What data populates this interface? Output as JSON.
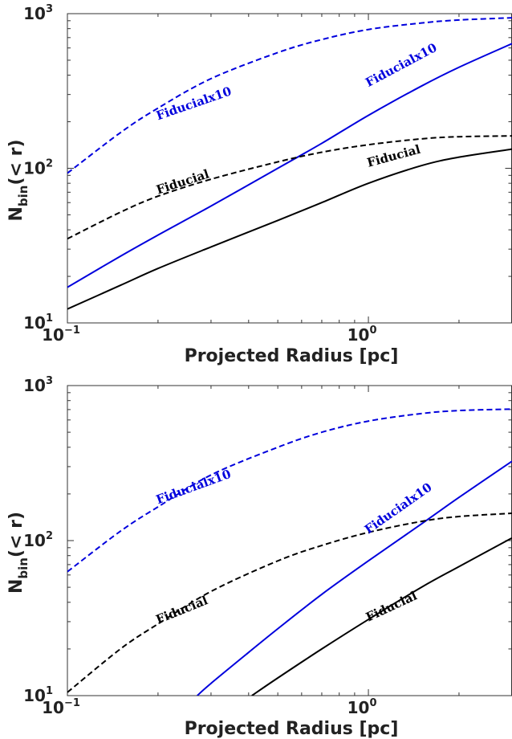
{
  "chart_data": [
    {
      "type": "line",
      "xlabel": "Projected Radius [pc]",
      "ylabel_main": "N",
      "ylabel_sub": "bin",
      "ylabel_tail": "(< r)",
      "xscale": "log",
      "yscale": "log",
      "xlim": [
        0.1,
        3.0
      ],
      "ylim": [
        10,
        1000
      ],
      "x_ticks": [
        {
          "value": 0.1,
          "base": "10",
          "exp": "−1"
        },
        {
          "value": 1,
          "base": "10",
          "exp": "0"
        }
      ],
      "y_ticks": [
        {
          "value": 10,
          "base": "10",
          "exp": "1"
        },
        {
          "value": 100,
          "base": "10",
          "exp": "2"
        },
        {
          "value": 1000,
          "base": "10",
          "exp": "3"
        }
      ],
      "series": [
        {
          "label": "Fiducialx10",
          "color": "#0000dd",
          "style": "dashed",
          "x": [
            0.1,
            0.15,
            0.2,
            0.3,
            0.5,
            0.7,
            1.0,
            1.5,
            2.0,
            3.0
          ],
          "y": [
            93,
            170,
            245,
            380,
            560,
            680,
            790,
            870,
            910,
            940
          ],
          "label_at": {
            "x": 0.2,
            "y": 205,
            "angle": -19
          }
        },
        {
          "label": "Fiducialx10",
          "color": "#0000dd",
          "style": "solid",
          "x": [
            0.1,
            0.15,
            0.2,
            0.3,
            0.5,
            0.7,
            1.0,
            1.5,
            2.0,
            3.0
          ],
          "y": [
            17,
            27,
            37,
            57,
            100,
            145,
            220,
            340,
            450,
            640
          ],
          "label_at": {
            "x": 1.0,
            "y": 335,
            "angle": -28
          }
        },
        {
          "label": "Fiducial",
          "color": "#000000",
          "style": "dashed",
          "x": [
            0.1,
            0.15,
            0.2,
            0.3,
            0.5,
            0.7,
            1.0,
            1.5,
            2.0,
            3.0
          ],
          "y": [
            35,
            52,
            66,
            85,
            110,
            127,
            142,
            155,
            160,
            162
          ],
          "label_at": {
            "x": 0.2,
            "y": 68,
            "angle": -18
          }
        },
        {
          "label": "Fiducial",
          "color": "#000000",
          "style": "solid",
          "x": [
            0.1,
            0.15,
            0.2,
            0.3,
            0.5,
            0.7,
            1.0,
            1.5,
            2.0,
            3.0
          ],
          "y": [
            12.3,
            17.5,
            22.5,
            31,
            46,
            60,
            80,
            104,
            118,
            133
          ],
          "label_at": {
            "x": 1.0,
            "y": 102,
            "angle": -15
          }
        }
      ]
    },
    {
      "type": "line",
      "xlabel": "Projected Radius [pc]",
      "ylabel_main": "N",
      "ylabel_sub": "bin",
      "ylabel_tail": "(< r)",
      "xscale": "log",
      "yscale": "log",
      "xlim": [
        0.1,
        3.0
      ],
      "ylim": [
        10,
        1000
      ],
      "x_ticks": [
        {
          "value": 0.1,
          "base": "10",
          "exp": "−1"
        },
        {
          "value": 1,
          "base": "10",
          "exp": "0"
        }
      ],
      "y_ticks": [
        {
          "value": 10,
          "base": "10",
          "exp": "1"
        },
        {
          "value": 100,
          "base": "10",
          "exp": "2"
        },
        {
          "value": 1000,
          "base": "10",
          "exp": "3"
        }
      ],
      "series": [
        {
          "label": "Fiducialx10",
          "color": "#0000dd",
          "style": "dashed",
          "x": [
            0.1,
            0.15,
            0.2,
            0.3,
            0.5,
            0.7,
            1.0,
            1.5,
            2.0,
            3.0
          ],
          "y": [
            63,
            115,
            165,
            265,
            400,
            500,
            590,
            660,
            690,
            705
          ],
          "label_at": {
            "x": 0.2,
            "y": 172,
            "angle": -20
          }
        },
        {
          "label": "Fiducialx10",
          "color": "#0000dd",
          "style": "solid",
          "x": [
            0.27,
            0.3,
            0.4,
            0.5,
            0.7,
            1.0,
            1.5,
            2.0,
            3.0
          ],
          "y": [
            10,
            12,
            19,
            27,
            45,
            74,
            128,
            190,
            325
          ],
          "label_at": {
            "x": 1.0,
            "y": 110,
            "angle": -35
          }
        },
        {
          "label": "Fiducial",
          "color": "#000000",
          "style": "dashed",
          "x": [
            0.1,
            0.15,
            0.2,
            0.3,
            0.5,
            0.7,
            1.0,
            1.5,
            2.0,
            3.0
          ],
          "y": [
            10.5,
            20,
            29,
            47,
            74,
            93,
            113,
            133,
            143,
            150
          ],
          "label_at": {
            "x": 0.2,
            "y": 29,
            "angle": -22
          }
        },
        {
          "label": "Fiducial",
          "color": "#000000",
          "style": "solid",
          "x": [
            0.41,
            0.5,
            0.7,
            1.0,
            1.5,
            2.0,
            3.0
          ],
          "y": [
            10,
            13,
            20,
            31,
            50,
            68,
            104
          ],
          "label_at": {
            "x": 1.0,
            "y": 30,
            "angle": -25
          }
        }
      ]
    }
  ]
}
